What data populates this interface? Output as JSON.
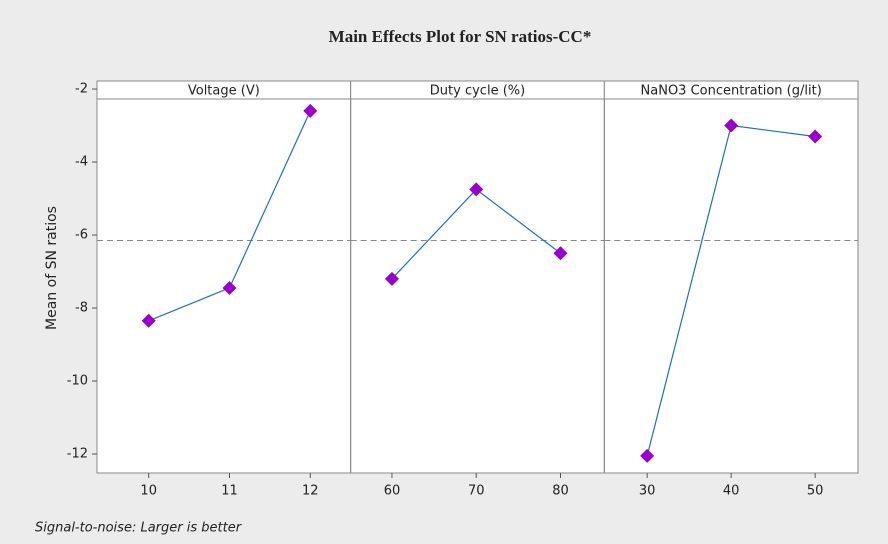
{
  "title": "Main Effects Plot for SN ratios-CC*",
  "y_label": "Mean of SN ratios",
  "footnote": "Signal-to-noise: Larger is better",
  "reference_line": -6.15,
  "chart_data": [
    {
      "type": "line",
      "title": "Voltage (V)",
      "x": [
        10,
        11,
        12
      ],
      "values": [
        -8.35,
        -7.45,
        -2.6
      ],
      "color": "#1f6fbf",
      "marker_color": "#9900cc",
      "xlim": [
        9.36,
        12.5
      ],
      "xticks": [
        10,
        11,
        12
      ],
      "ylim": [
        -12.52,
        -1.78
      ],
      "yticks": [
        -12,
        -10,
        -8,
        -6,
        -4,
        -2
      ]
    },
    {
      "type": "line",
      "title": "Duty cycle (%)",
      "x": [
        60,
        70,
        80
      ],
      "values": [
        -7.2,
        -4.75,
        -6.5
      ],
      "color": "#1f6fbf",
      "marker_color": "#9900cc",
      "xlim": [
        55.1,
        85.2
      ],
      "xticks": [
        60,
        70,
        80
      ],
      "ylim": [
        -12.52,
        -1.78
      ]
    },
    {
      "type": "line",
      "title": "NaNO3 Concentration (g/lit)",
      "x": [
        30,
        40,
        50
      ],
      "values": [
        -12.05,
        -3.0,
        -3.3
      ],
      "color": "#1f6fbf",
      "marker_color": "#9900cc",
      "xlim": [
        24.9,
        55.1
      ],
      "xticks": [
        30,
        40,
        50
      ],
      "ylim": [
        -12.52,
        -1.78
      ]
    }
  ]
}
